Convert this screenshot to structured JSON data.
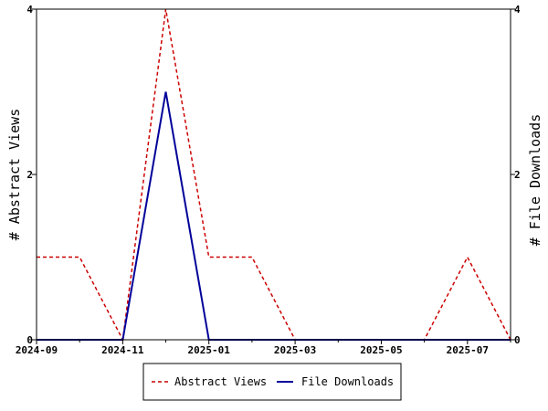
{
  "chart_data": {
    "type": "line",
    "x": [
      "2024-09",
      "2024-10",
      "2024-11",
      "2024-12",
      "2025-01",
      "2025-02",
      "2025-03",
      "2025-04",
      "2025-05",
      "2025-06",
      "2025-07",
      "2025-08"
    ],
    "x_ticks": [
      "2024-09",
      "2024-11",
      "2025-01",
      "2025-03",
      "2025-05",
      "2025-07"
    ],
    "series": [
      {
        "name": "Abstract Views",
        "axis": "left",
        "color": "#cc0000",
        "dash": "dashed",
        "values": [
          1,
          1,
          0,
          4,
          1,
          1,
          0,
          0,
          0,
          0,
          1,
          0
        ]
      },
      {
        "name": "File Downloads",
        "axis": "right",
        "color": "#000099",
        "dash": "solid",
        "values": [
          0,
          0,
          0,
          3,
          0,
          0,
          0,
          0,
          0,
          0,
          0,
          0
        ]
      }
    ],
    "ylabel_left": "# Abstract Views",
    "ylabel_right": "# File Downloads",
    "ylim_left": [
      0,
      4
    ],
    "ylim_right": [
      0,
      4
    ],
    "y_ticks_left": [
      0,
      2,
      4
    ],
    "y_ticks_right": [
      0,
      2,
      4
    ],
    "grid": false,
    "legend": "bottom"
  }
}
